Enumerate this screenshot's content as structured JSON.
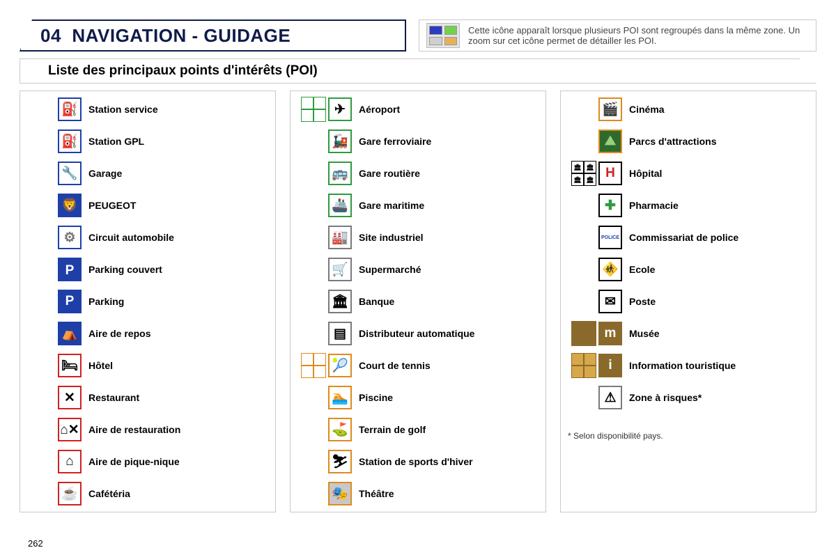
{
  "header": {
    "section_number": "04",
    "title": "NAVIGATION - GUIDAGE",
    "note_text": "Cette icône apparaît lorsque plusieurs POI sont regroupés dans la même zone. Un zoom sur cet icône permet de détailler les POI.",
    "note_grid_colors": [
      "#2c3cc0",
      "#72d24a",
      "#cfcfcf",
      "#e8b05a"
    ]
  },
  "subtitle": "Liste des principaux points d'intérêts (POI)",
  "page_number": "262",
  "footnote": "* Selon disponibilité pays.",
  "colors": {
    "title_border": "#0f1b4a",
    "box_border": "#c9c9c9",
    "blue": "#1e3fa8",
    "red": "#d22020",
    "green": "#2e9b3e",
    "orange": "#e08a1c",
    "grey": "#7a7a7a",
    "black": "#000000",
    "brown": "#8a6a2c"
  },
  "columns": [
    {
      "items": [
        {
          "label": "Station service",
          "border": "blue",
          "glyph": "⛽",
          "bg": "#fff",
          "fg": "#000"
        },
        {
          "label": "Station GPL",
          "border": "blue",
          "glyph": "⛽",
          "bg": "#fff",
          "fg": "#000"
        },
        {
          "label": "Garage",
          "border": "blue",
          "glyph": "🔧",
          "bg": "#fff",
          "fg": "#000"
        },
        {
          "label": "PEUGEOT",
          "border": "blue",
          "glyph": "🦁",
          "bg": "#1e3fa8",
          "fg": "#fff"
        },
        {
          "label": "Circuit automobile",
          "border": "blue",
          "glyph": "⚙",
          "bg": "#fff",
          "fg": "#777"
        },
        {
          "label": "Parking couvert",
          "border": "blue",
          "glyph": "P",
          "bg": "#1e3fa8",
          "fg": "#fff",
          "roof": true
        },
        {
          "label": "Parking",
          "border": "blue",
          "glyph": "P",
          "bg": "#1e3fa8",
          "fg": "#fff"
        },
        {
          "label": "Aire de repos",
          "border": "blue",
          "glyph": "⛺",
          "bg": "#1e3fa8",
          "fg": "#fff"
        },
        {
          "label": "Hôtel",
          "border": "red",
          "glyph": "🛏",
          "bg": "#fff",
          "fg": "#000"
        },
        {
          "label": "Restaurant",
          "border": "red",
          "glyph": "✕",
          "bg": "#fff",
          "fg": "#000"
        },
        {
          "label": "Aire de restauration",
          "border": "red",
          "glyph": "⌂✕",
          "bg": "#fff",
          "fg": "#000"
        },
        {
          "label": "Aire de pique-nique",
          "border": "red",
          "glyph": "⌂",
          "bg": "#fff",
          "fg": "#000"
        },
        {
          "label": "Cafétéria",
          "border": "red",
          "glyph": "☕",
          "bg": "#fff",
          "fg": "#000"
        }
      ]
    },
    {
      "items": [
        {
          "label": "Aéroport",
          "border": "green",
          "glyph": "✈",
          "bg": "#fff",
          "fg": "#000",
          "cluster": true,
          "cluster_border": "green"
        },
        {
          "label": "Gare ferroviaire",
          "border": "green",
          "glyph": "🚂",
          "bg": "#fff",
          "fg": "#000"
        },
        {
          "label": "Gare routière",
          "border": "green",
          "glyph": "🚌",
          "bg": "#fff",
          "fg": "#000"
        },
        {
          "label": "Gare maritime",
          "border": "green",
          "glyph": "🚢",
          "bg": "#fff",
          "fg": "#000"
        },
        {
          "label": "Site industriel",
          "border": "grey",
          "glyph": "🏭",
          "bg": "#fff",
          "fg": "#000"
        },
        {
          "label": "Supermarché",
          "border": "grey",
          "glyph": "🛒",
          "bg": "#fff",
          "fg": "#000"
        },
        {
          "label": "Banque",
          "border": "grey",
          "glyph": "🏛",
          "bg": "#fff",
          "fg": "#000"
        },
        {
          "label": "Distributeur automatique",
          "border": "grey",
          "glyph": "▤",
          "bg": "#fff",
          "fg": "#000"
        },
        {
          "label": "Court de tennis",
          "border": "orange",
          "glyph": "🎾",
          "bg": "#fff",
          "fg": "#000",
          "cluster": true,
          "cluster_border": "orange"
        },
        {
          "label": "Piscine",
          "border": "orange",
          "glyph": "🏊",
          "bg": "#fff",
          "fg": "#000"
        },
        {
          "label": "Terrain de golf",
          "border": "orange",
          "glyph": "⛳",
          "bg": "#fff",
          "fg": "#000"
        },
        {
          "label": "Station de sports d'hiver",
          "border": "orange",
          "glyph": "⛷",
          "bg": "#fff",
          "fg": "#000"
        },
        {
          "label": "Théâtre",
          "border": "orange",
          "glyph": "🎭",
          "bg": "#c8c8c8",
          "fg": "#000"
        }
      ]
    },
    {
      "items": [
        {
          "label": "Cinéma",
          "border": "orange",
          "glyph": "🎬",
          "bg": "#fff",
          "fg": "#000"
        },
        {
          "label": "Parcs d'attractions",
          "border": "orange",
          "glyph": "⛰",
          "bg": "#2e6a2e",
          "fg": "#9ad07a"
        },
        {
          "label": "Hôpital",
          "border": "black",
          "glyph": "H",
          "bg": "#fff",
          "fg": "#d22020",
          "cluster": true,
          "cluster_border": "black",
          "cluster_glyph": "🏛"
        },
        {
          "label": "Pharmacie",
          "border": "black",
          "glyph": "✚",
          "bg": "#fff",
          "fg": "#2e9b3e"
        },
        {
          "label": "Commissariat de police",
          "border": "black",
          "glyph": "POLICE",
          "bg": "#fff",
          "fg": "#1e3fa8",
          "tiny": true
        },
        {
          "label": "Ecole",
          "border": "black",
          "glyph": "🚸",
          "bg": "#fff",
          "fg": "#000"
        },
        {
          "label": "Poste",
          "border": "black",
          "glyph": "✉",
          "bg": "#fff",
          "fg": "#000"
        },
        {
          "label": "Musée",
          "border": "brown",
          "glyph": "m",
          "bg": "#8a6a2c",
          "fg": "#fff",
          "cluster": true,
          "cluster_border": "brown",
          "cluster_bg": "#8a6a2c"
        },
        {
          "label": "Information touristique",
          "border": "brown",
          "glyph": "i",
          "bg": "#8a6a2c",
          "fg": "#fff",
          "cluster": true,
          "cluster_border": "brown",
          "cluster_bg": "#d6a84a"
        },
        {
          "label": "Zone à risques*",
          "border": "grey",
          "glyph": "⚠",
          "bg": "#fff",
          "fg": "#000"
        }
      ],
      "footnote": true
    }
  ]
}
